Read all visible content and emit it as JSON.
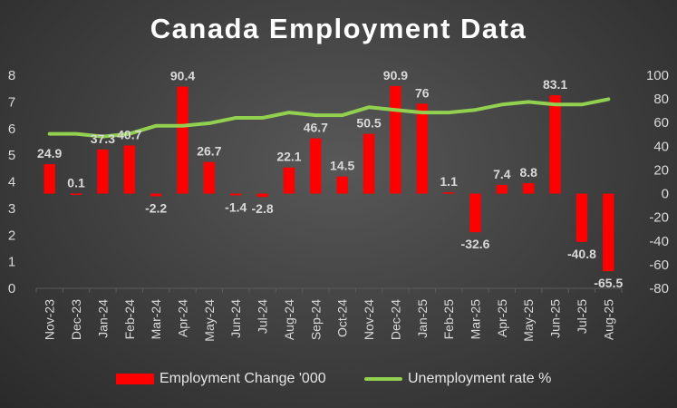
{
  "colors": {
    "bar": "#ff0000",
    "line": "#92d050",
    "text": "#d9d9d9",
    "grid": "#5a5a5a"
  },
  "chart_data": {
    "type": "bar+line",
    "title": "Canada Employment Data",
    "categories": [
      "Nov-23",
      "Dec-23",
      "Jan-24",
      "Feb-24",
      "Mar-24",
      "Apr-24",
      "May-24",
      "Jun-24",
      "Jul-24",
      "Aug-24",
      "Sep-24",
      "Oct-24",
      "Nov-24",
      "Dec-24",
      "Jan-25",
      "Feb-25",
      "Mar-25",
      "Apr-25",
      "May-25",
      "Jun-25",
      "Jul-25",
      "Aug-25"
    ],
    "series": [
      {
        "name": "Employment Change '000",
        "type": "bar",
        "axis": "right",
        "values": [
          24.9,
          0.1,
          37.3,
          40.7,
          -2.2,
          90.4,
          26.7,
          -1.4,
          -2.8,
          22.1,
          46.7,
          14.5,
          50.5,
          90.9,
          76,
          1.1,
          -32.6,
          7.4,
          8.8,
          83.1,
          -40.8,
          -65.5
        ],
        "labels": [
          "24.9",
          "0.1",
          "37.3",
          "40.7",
          "-2.2",
          "90.4",
          "26.7",
          "-1.4",
          "-2.8",
          "22.1",
          "46.7",
          "14.5",
          "50.5",
          "90.9",
          "76",
          "1.1",
          "-32.6",
          "7.4",
          "8.8",
          "83.1",
          "-40.8",
          "-65.5"
        ]
      },
      {
        "name": "Unemployment rate %",
        "type": "line",
        "axis": "left",
        "values": [
          5.8,
          5.8,
          5.7,
          5.8,
          6.1,
          6.1,
          6.2,
          6.4,
          6.4,
          6.6,
          6.5,
          6.5,
          6.8,
          6.7,
          6.6,
          6.6,
          6.7,
          6.9,
          7.0,
          6.9,
          6.9,
          7.1
        ]
      }
    ],
    "y_left": {
      "min": 0,
      "max": 8,
      "ticks": [
        "0",
        "1",
        "2",
        "3",
        "4",
        "5",
        "6",
        "7",
        "8"
      ]
    },
    "y_right": {
      "min": -80,
      "max": 100,
      "ticks": [
        "-80",
        "-60",
        "-40",
        "-20",
        "0",
        "20",
        "40",
        "60",
        "80",
        "100"
      ]
    },
    "grid": false,
    "legend_position": "bottom"
  }
}
